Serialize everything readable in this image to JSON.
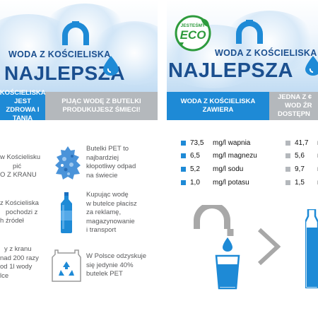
{
  "left": {
    "hero": {
      "title_line1": "WODA Z KOŚCIELISKA",
      "title_line2": "NAJLEPSZA"
    },
    "banner_blue": "WODA Z KOŚCIELISKA JEST ZDROWA I TANIA",
    "banner_blue_lines": [
      "KOŚCIELISKA JEST",
      "ZDROWA I TANIA"
    ],
    "banner_grey_lines": [
      "PIJĄC WODĘ Z BUTELKI",
      "PRODUKUJESZ ŚMIECI!"
    ],
    "rows": [
      {
        "left_lines": [
          "w Kościelisku",
          "pić",
          "O Z KRANU"
        ],
        "right_lines": [
          "Butelki PET to",
          "najbardziej",
          "kłopotliwy odpad",
          "na świecie"
        ],
        "icon": "plastic-waste-pile-icon"
      },
      {
        "left_lines": [
          "z Kościeliska",
          "pochodzi z",
          "h źródeł"
        ],
        "right_lines": [
          "Kupując wodę",
          "w butelce płacisz",
          "za reklamę,",
          "magazynowanie",
          "i transport"
        ],
        "icon": "water-bottle-icon"
      },
      {
        "left_lines": [
          "y z kranu",
          "nad 200 razy",
          "od 1l wody",
          "lce"
        ],
        "right_lines": [
          "W Polsce odzyskuje",
          "się jedynie 40%",
          "butelek PET"
        ],
        "icon": "recycling-container-icon"
      }
    ]
  },
  "right": {
    "hero": {
      "badge_top": "JESTEŚMY",
      "badge_main": "ECO",
      "title_line1": "WODA Z KOŚCIELISKA",
      "title_line2": "NAJLEPSZA"
    },
    "banner_blue_lines": [
      "WODA Z KOŚCIELISKA",
      "ZAWIERA"
    ],
    "banner_grey_lines": [
      "JEDNA Z ¢",
      "WOD ŹR",
      "DOSTĘPN"
    ],
    "stats_blue": [
      {
        "value": "73,5",
        "unit": "mg/l wapnia"
      },
      {
        "value": "6,5",
        "unit": "mg/l magnezu"
      },
      {
        "value": "5,2",
        "unit": "mg/l sodu"
      },
      {
        "value": "1,0",
        "unit": "mg/l potasu"
      }
    ],
    "stats_grey": [
      {
        "value": "41,7",
        "unit": "m"
      },
      {
        "value": "5,6",
        "unit": "m"
      },
      {
        "value": "9,7",
        "unit": "m"
      },
      {
        "value": "1,5",
        "unit": "m"
      }
    ]
  },
  "colors": {
    "brand_blue": "#1e8ad6",
    "title_navy": "#1b4f8f",
    "grey": "#b4b8bc",
    "text": "#58595b",
    "eco_green": "#2e9b3d"
  }
}
